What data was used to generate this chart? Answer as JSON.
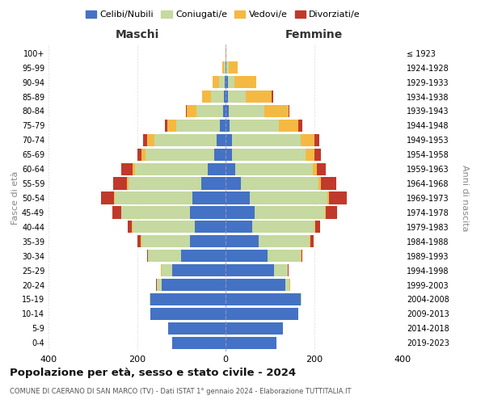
{
  "age_groups": [
    "0-4",
    "5-9",
    "10-14",
    "15-19",
    "20-24",
    "25-29",
    "30-34",
    "35-39",
    "40-44",
    "45-49",
    "50-54",
    "55-59",
    "60-64",
    "65-69",
    "70-74",
    "75-79",
    "80-84",
    "85-89",
    "90-94",
    "95-99",
    "100+"
  ],
  "birth_years": [
    "2019-2023",
    "2014-2018",
    "2009-2013",
    "2004-2008",
    "1999-2003",
    "1994-1998",
    "1989-1993",
    "1984-1988",
    "1979-1983",
    "1974-1978",
    "1969-1973",
    "1964-1968",
    "1959-1963",
    "1954-1958",
    "1949-1953",
    "1944-1948",
    "1939-1943",
    "1934-1938",
    "1929-1933",
    "1924-1928",
    "≤ 1923"
  ],
  "colors": {
    "celibi": "#4472C4",
    "coniugati": "#c5d9a0",
    "vedovi": "#f4b942",
    "divorziati": "#c0392b"
  },
  "maschi": {
    "celibi": [
      120,
      130,
      170,
      170,
      145,
      120,
      100,
      80,
      70,
      80,
      75,
      55,
      40,
      25,
      20,
      12,
      6,
      3,
      2,
      0,
      0
    ],
    "coniugati": [
      0,
      0,
      0,
      2,
      10,
      25,
      75,
      110,
      140,
      155,
      175,
      165,
      165,
      155,
      140,
      100,
      60,
      30,
      12,
      3,
      0
    ],
    "vedovi": [
      0,
      0,
      0,
      0,
      1,
      1,
      1,
      1,
      1,
      1,
      2,
      3,
      5,
      10,
      18,
      20,
      22,
      20,
      15,
      5,
      0
    ],
    "divorziati": [
      0,
      0,
      0,
      0,
      1,
      1,
      2,
      8,
      10,
      20,
      30,
      30,
      25,
      10,
      8,
      5,
      2,
      0,
      0,
      0,
      0
    ]
  },
  "femmine": {
    "celibi": [
      115,
      130,
      165,
      170,
      135,
      110,
      95,
      75,
      60,
      65,
      55,
      35,
      22,
      15,
      15,
      10,
      7,
      5,
      5,
      2,
      0
    ],
    "coniugati": [
      0,
      0,
      0,
      2,
      10,
      30,
      75,
      115,
      140,
      160,
      175,
      175,
      175,
      165,
      155,
      110,
      80,
      40,
      15,
      5,
      0
    ],
    "vedovi": [
      0,
      0,
      0,
      0,
      1,
      1,
      1,
      1,
      2,
      2,
      4,
      5,
      10,
      20,
      30,
      45,
      55,
      60,
      50,
      20,
      2
    ],
    "divorziati": [
      0,
      0,
      0,
      0,
      1,
      1,
      3,
      8,
      12,
      25,
      40,
      35,
      20,
      15,
      12,
      8,
      3,
      2,
      0,
      0,
      0
    ]
  },
  "xlim": 400,
  "title": "Popolazione per età, sesso e stato civile - 2024",
  "subtitle": "COMUNE DI CAERANO DI SAN MARCO (TV) - Dati ISTAT 1° gennaio 2024 - Elaborazione TUTTITALIA.IT",
  "ylabel_left": "Fasce di età",
  "ylabel_right": "Anni di nascita",
  "legend_labels": [
    "Celibi/Nubili",
    "Coniugati/e",
    "Vedovi/e",
    "Divorziati/e"
  ],
  "maschi_label": "Maschi",
  "femmine_label": "Femmine",
  "background_color": "#ffffff",
  "grid_color": "#cccccc"
}
